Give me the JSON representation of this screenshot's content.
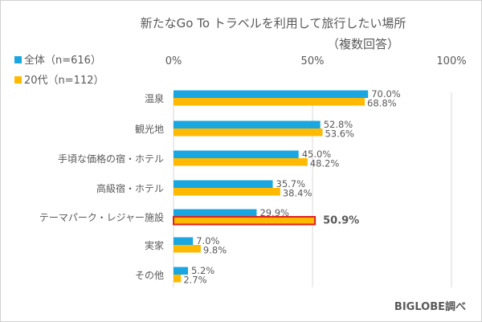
{
  "chart_data": {
    "type": "bar",
    "orientation": "horizontal",
    "title": "新たなGo To トラベルを利用して旅行したい場所",
    "subtitle": "（複数回答）",
    "categories": [
      "温泉",
      "観光地",
      "手頃な価格の宿・ホテル",
      "高級宿・ホテル",
      "テーマパーク・レジャー施設",
      "実家",
      "その他"
    ],
    "series": [
      {
        "name": "全体（n=616）",
        "color": "#1aa6e0",
        "values": [
          70.0,
          52.8,
          45.0,
          35.7,
          29.9,
          7.0,
          5.2
        ],
        "labels": [
          "70.0%",
          "52.8%",
          "45.0%",
          "35.7%",
          "29.9%",
          "7.0%",
          "5.2%"
        ]
      },
      {
        "name": "20代（n=112）",
        "color": "#ffb900",
        "values": [
          68.8,
          53.6,
          48.2,
          38.4,
          50.9,
          9.8,
          2.7
        ],
        "labels": [
          "68.8%",
          "53.6%",
          "48.2%",
          "38.4%",
          "50.9%",
          "9.8%",
          "2.7%"
        ]
      }
    ],
    "highlight": {
      "series": 1,
      "index": 4,
      "outline_color": "#e02020"
    },
    "xlim": [
      0,
      100
    ],
    "xticks": [
      "0%",
      "50%",
      "100%"
    ],
    "grid": true,
    "legend_placement": "top-left",
    "source": "BIGLOBE調べ"
  }
}
